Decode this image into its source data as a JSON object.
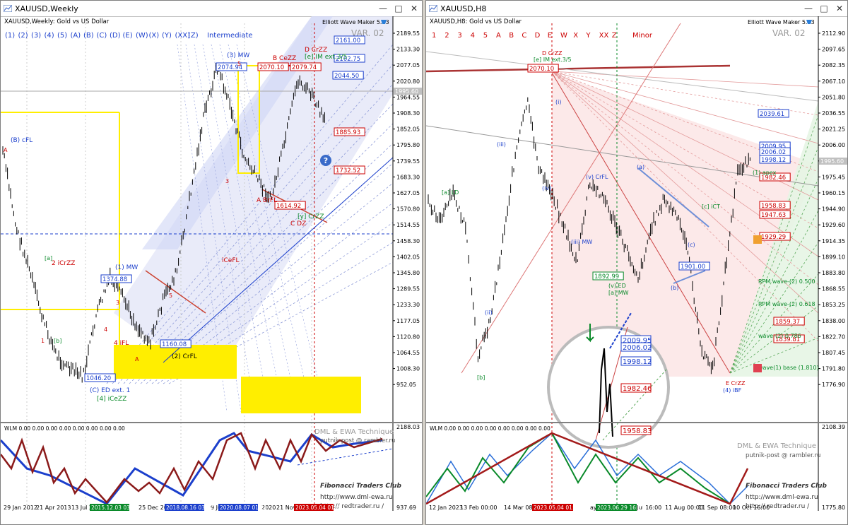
{
  "windows": [
    {
      "title": "XAUUSD,Weekly",
      "chart_header": "XAUUSD,Weekly: Gold vs US Dollar",
      "indicator_name": "Elliott Wave Maker 5.63",
      "variant": "VAR. 02",
      "wave_labels": [
        "(1)",
        "(2)",
        "(3)",
        "(4)",
        "(5)",
        "(A)",
        "(B)",
        "(C)",
        "(D)",
        "(E)",
        "(W)",
        "(X)",
        "(Y)",
        "(XX)",
        "(Z)"
      ],
      "degree": "Intermediate",
      "price_ticks": [
        "2189.55",
        "2133.30",
        "2077.05",
        "2020.80",
        "1964.55",
        "1908.30",
        "1852.05",
        "1795.80",
        "1739.55",
        "1683.30",
        "1627.05",
        "1570.80",
        "1514.55",
        "1458.30",
        "1402.05",
        "1345.80",
        "1289.55",
        "1233.30",
        "1177.05",
        "1120.80",
        "1064.55",
        "1008.30",
        "952.05"
      ],
      "current_price": "1995.60",
      "price_boxes": [
        {
          "text": "2161.00",
          "color": "#1b3fcc"
        },
        {
          "text": "2102.75",
          "color": "#1b3fcc"
        },
        {
          "text": "2044.50",
          "color": "#1b3fcc"
        },
        {
          "text": "2074.94",
          "color": "#1b3fcc"
        },
        {
          "text": "2070.10",
          "color": "#cc0000"
        },
        {
          "text": "2079.74",
          "color": "#cc0000"
        },
        {
          "text": "1885.93",
          "color": "#cc0000"
        },
        {
          "text": "1732.52",
          "color": "#cc0000"
        },
        {
          "text": "1614.92",
          "color": "#cc0000"
        },
        {
          "text": "1374.88",
          "color": "#1b3fcc"
        },
        {
          "text": "1160.08",
          "color": "#1b3fcc"
        },
        {
          "text": "1046.20",
          "color": "#1b3fcc"
        }
      ],
      "wave_annotations": [
        {
          "text": "(B) cFL",
          "color": "#1b3fcc"
        },
        {
          "text": "(3) MW",
          "color": "#1b3fcc"
        },
        {
          "text": "(1) MW",
          "color": "#1b3fcc"
        },
        {
          "text": "(2) CrFL",
          "color": "#000000"
        },
        {
          "text": "(C) ED ext. 1",
          "color": "#1b3fcc"
        },
        {
          "text": "[4] iCeZZ",
          "color": "#0a8a2a"
        },
        {
          "text": "2 iCrZZ",
          "color": "#cc0000"
        },
        {
          "text": "4 iFL",
          "color": "#cc0000"
        },
        {
          "text": "A BrFL",
          "color": "#cc0000"
        },
        {
          "text": "B CeZZ",
          "color": "#cc0000"
        },
        {
          "text": "D CrZZ",
          "color": "#cc0000"
        },
        {
          "text": "[e] IM ext.3/5",
          "color": "#0a8a2a"
        },
        {
          "text": "C DZ",
          "color": "#cc0000"
        },
        {
          "text": "[y] CrZZ",
          "color": "#0a8a2a"
        },
        {
          "text": "iCeFL",
          "color": "#cc0000"
        }
      ],
      "subwindow_label": "WLM 0.00 0.00 0.00 0.00 0.00 0.00 0.00 0.00",
      "sub_ticks": [
        "2188.03",
        "937.69"
      ],
      "watermark_title": "DML & EWA Technique",
      "watermark_email": "putnik-post @ rambler.ru",
      "club_name": "Fibonacci Traders Club",
      "site_1": "http://www.dml-ewa.ru",
      "site_2": "http:// redtrader.ru /",
      "date_labels": [
        "29 Jan 2012",
        "21 Apr 2013",
        "13 Jul 2",
        "25 Dec 201",
        "9 Jun",
        "2020",
        "21 Nov"
      ],
      "date_highlights": [
        {
          "text": "2015.12.03 03:20",
          "color": "#0a8a2a"
        },
        {
          "text": "2018.08.16 03:47",
          "color": "#1b3fcc"
        },
        {
          "text": "2020.08.07 01:21",
          "color": "#1b3fcc"
        },
        {
          "text": "2023.05.04 01:01",
          "color": "#cc0000"
        }
      ],
      "badge": "?"
    },
    {
      "title": "XAUUSD,H8",
      "chart_header": "XAUUSD,H8: Gold vs US Dollar",
      "indicator_name": "Elliott Wave Maker 5.63",
      "variant": "VAR. 02",
      "wave_labels": [
        "1",
        "2",
        "3",
        "4",
        "5",
        "A",
        "B",
        "C",
        "D",
        "E",
        "W",
        "X",
        "Y",
        "XX",
        "Z"
      ],
      "degree": "Minor",
      "price_ticks": [
        "2112.90",
        "2097.65",
        "2082.35",
        "2067.10",
        "2051.80",
        "2036.55",
        "2021.25",
        "2006.00",
        "1990.70",
        "1975.45",
        "1960.15",
        "1944.90",
        "1929.60",
        "1914.35",
        "1899.10",
        "1883.80",
        "1868.55",
        "1853.25",
        "1838.00",
        "1822.70",
        "1807.45",
        "1791.80",
        "1776.90"
      ],
      "current_price": "1995.60",
      "price_boxes": [
        {
          "text": "2039.61",
          "color": "#1b3fcc"
        },
        {
          "text": "2009.95",
          "color": "#1b3fcc"
        },
        {
          "text": "2006.02",
          "color": "#1b3fcc"
        },
        {
          "text": "1998.12",
          "color": "#1b3fcc"
        },
        {
          "text": "1982.46",
          "color": "#cc0000"
        },
        {
          "text": "1958.83",
          "color": "#cc0000"
        },
        {
          "text": "1947.63",
          "color": "#cc0000"
        },
        {
          "text": "1929.29",
          "color": "#cc0000"
        },
        {
          "text": "1901.00",
          "color": "#1b3fcc"
        },
        {
          "text": "1892.99",
          "color": "#0a8a2a"
        },
        {
          "text": "1859.37",
          "color": "#cc0000"
        },
        {
          "text": "1839.81",
          "color": "#cc0000"
        },
        {
          "text": "2070.10",
          "color": "#cc0000"
        }
      ],
      "wave_annotations": [
        {
          "text": "D CrZZ",
          "color": "#cc0000"
        },
        {
          "text": "[e] IM ext.3/5",
          "color": "#0a8a2a"
        },
        {
          "text": "[a] LD",
          "color": "#0a8a2a"
        },
        {
          "text": "(iii) MW",
          "color": "#1b3fcc"
        },
        {
          "text": "(v) CrFL",
          "color": "#1b3fcc"
        },
        {
          "text": "(v) ED",
          "color": "#0a8a2a"
        },
        {
          "text": "[a] MW",
          "color": "#0a8a2a"
        },
        {
          "text": "E CrZZ",
          "color": "#cc0000"
        },
        {
          "text": "(4) iBF",
          "color": "#1b3fcc"
        },
        {
          "text": "[c] iCT",
          "color": "#0a8a2a"
        },
        {
          "text": "(1) apex",
          "color": "#0a8a2a"
        },
        {
          "text": "RPM wave-(2) 0.500",
          "color": "#0a8a2a"
        },
        {
          "text": "RPM wave-(2) 0.618",
          "color": "#0a8a2a"
        },
        {
          "text": "wave-(2) 0.786",
          "color": "#0a8a2a"
        },
        {
          "text": "wave(1) base (1.810)",
          "color": "#0a8a2a"
        }
      ],
      "zoom_prices": [
        "2009.95",
        "2006.02",
        "1998.12",
        "1982.46",
        "1958.83"
      ],
      "subwindow_label": "WLM 0.00 0.00 0.00 0.00 0.00 0.00 0.00 0.00",
      "sub_ticks": [
        "2108.39",
        "1775.80"
      ],
      "watermark_title": "DML & EWA Technique",
      "watermark_email": "putnik-post @ rambler.ru",
      "club_name": "Fibonacci Traders Club",
      "site_1": "http://www.dml-ewa.ru",
      "site_2": "http:// redtrader.ru /",
      "date_labels": [
        "12 Jan 2023",
        "13 Feb 00:00",
        "14 Mar 08:00",
        "ay 00:00",
        "Jul 16:00",
        "11 Aug 00:00",
        "11 Sep 08:00",
        "10 Oct 16:00"
      ],
      "date_highlights": [
        {
          "text": "2023.05.04 01:01",
          "color": "#cc0000"
        },
        {
          "text": "2023.06.29 16:31",
          "color": "#0a8a2a"
        }
      ]
    }
  ],
  "colors": {
    "red": "#cc0000",
    "blue": "#1b3fcc",
    "green": "#0a8a2a",
    "yellow": "#ffee00"
  },
  "icons": [
    "chart-window-icon",
    "minimize-icon",
    "maximize-icon",
    "close-icon",
    "help-icon",
    "logo-icon"
  ]
}
